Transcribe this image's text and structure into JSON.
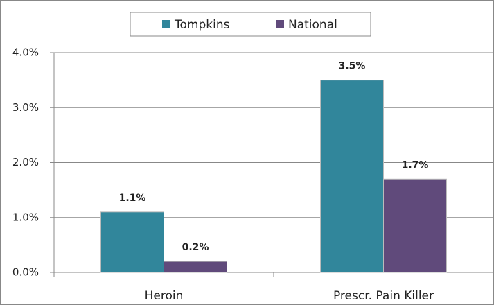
{
  "chart_data": {
    "type": "bar",
    "categories": [
      "Heroin",
      "Prescr. Pain Killer"
    ],
    "series": [
      {
        "name": "Tompkins",
        "color": "#31869b",
        "values": [
          1.1,
          3.5
        ],
        "value_labels": [
          "1.1%",
          "3.5%"
        ]
      },
      {
        "name": "National",
        "color": "#604a7b",
        "values": [
          0.2,
          1.7
        ],
        "value_labels": [
          "0.2%",
          "1.7%"
        ]
      }
    ],
    "ylim": [
      0,
      4
    ],
    "yticks": [
      {
        "value": 0,
        "label": "0.0%"
      },
      {
        "value": 1,
        "label": "1.0%"
      },
      {
        "value": 2,
        "label": "2.0%"
      },
      {
        "value": 3,
        "label": "3.0%"
      },
      {
        "value": 4,
        "label": "4.0%"
      }
    ],
    "grid": true,
    "legend": "top"
  }
}
